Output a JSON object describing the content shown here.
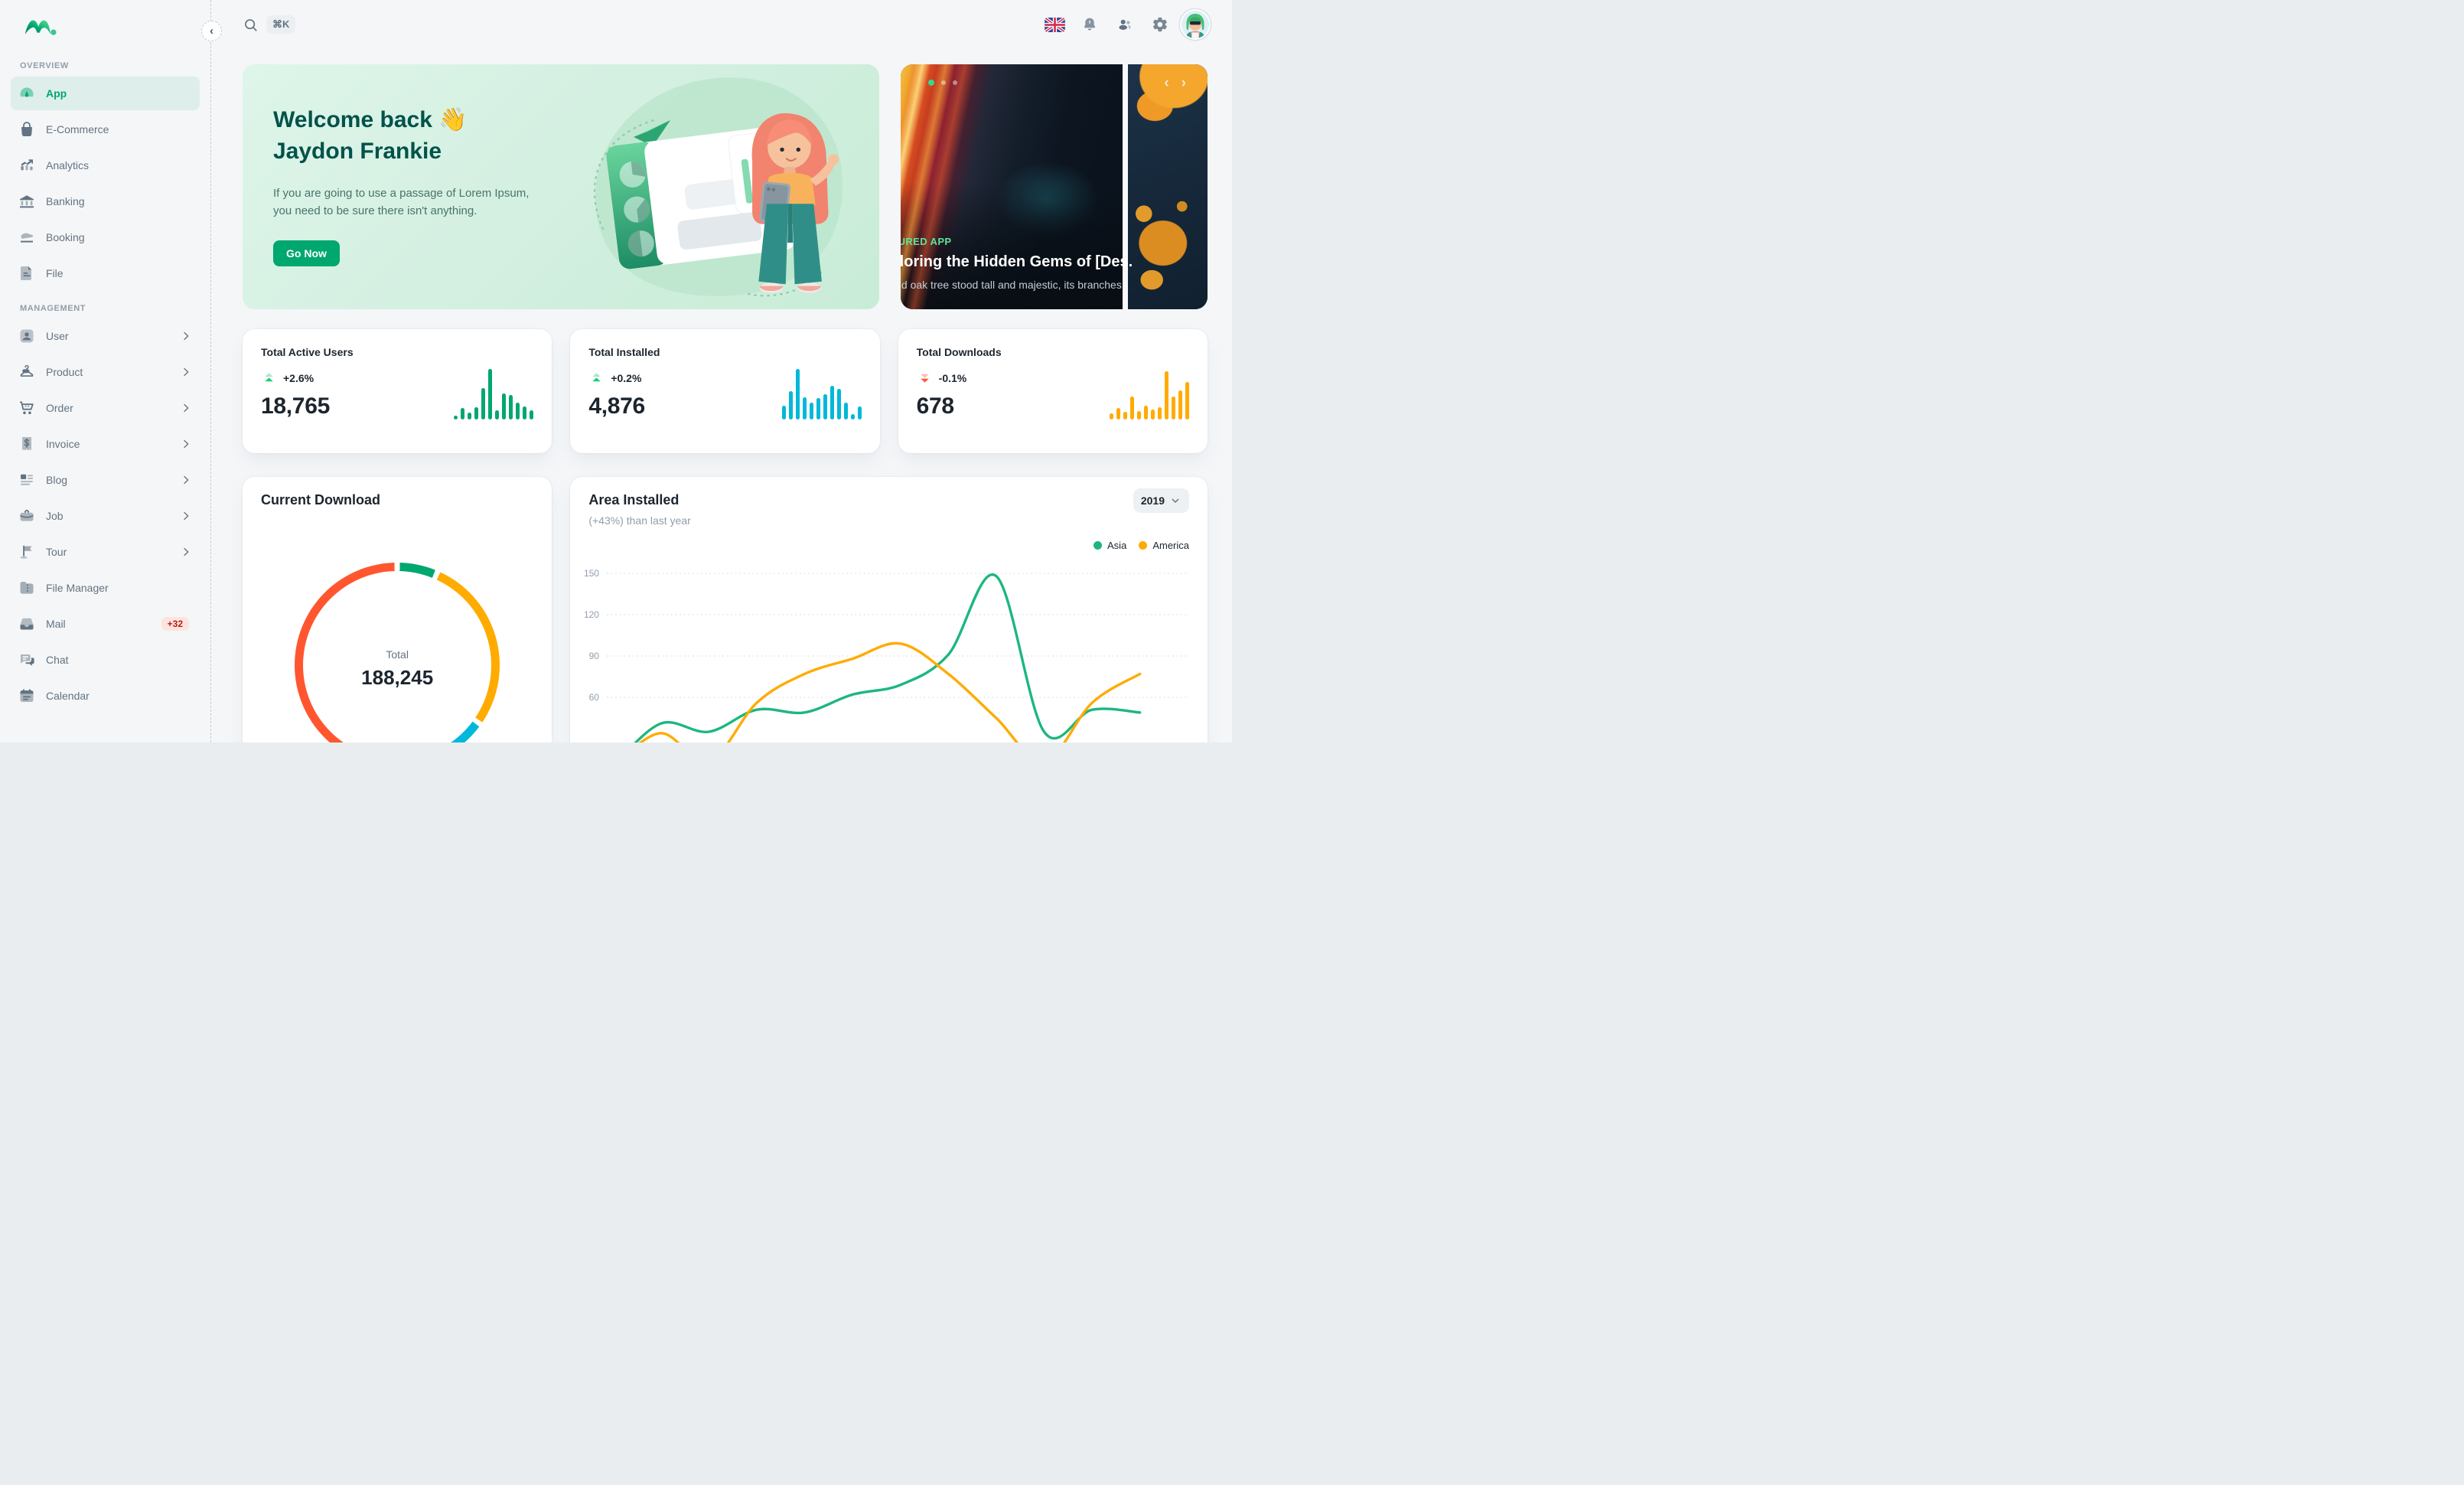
{
  "topbar": {
    "shortcut": "⌘K"
  },
  "sidebar": {
    "sections": [
      {
        "label": "OVERVIEW",
        "items": [
          {
            "label": "App",
            "icon": "gauge-icon",
            "active": true
          },
          {
            "label": "E-Commerce",
            "icon": "shopping-bag-icon"
          },
          {
            "label": "Analytics",
            "icon": "analytics-icon"
          },
          {
            "label": "Banking",
            "icon": "bank-icon"
          },
          {
            "label": "Booking",
            "icon": "booking-icon"
          },
          {
            "label": "File",
            "icon": "file-icon"
          }
        ]
      },
      {
        "label": "MANAGEMENT",
        "items": [
          {
            "label": "User",
            "icon": "user-icon",
            "chevron": true
          },
          {
            "label": "Product",
            "icon": "hanger-icon",
            "chevron": true
          },
          {
            "label": "Order",
            "icon": "cart-icon",
            "chevron": true
          },
          {
            "label": "Invoice",
            "icon": "invoice-icon",
            "chevron": true
          },
          {
            "label": "Blog",
            "icon": "blog-icon",
            "chevron": true
          },
          {
            "label": "Job",
            "icon": "job-icon",
            "chevron": true
          },
          {
            "label": "Tour",
            "icon": "flag-icon",
            "chevron": true
          },
          {
            "label": "File Manager",
            "icon": "folder-icon"
          },
          {
            "label": "Mail",
            "icon": "inbox-icon",
            "badge": "+32"
          },
          {
            "label": "Chat",
            "icon": "chat-icon"
          },
          {
            "label": "Calendar",
            "icon": "calendar-icon"
          }
        ]
      }
    ]
  },
  "banner": {
    "greeting": "Welcome back 👋",
    "name": "Jaydon Frankie",
    "description": "If you are going to use a passage of Lorem Ipsum, you need to be sure there isn't anything.",
    "cta": "Go Now"
  },
  "featured": {
    "label": "FEATURED APP",
    "title": "Exploring the Hidden Gems of [Des...",
    "description": "The old oak tree stood tall and majestic, its branches ...",
    "dots": [
      "active",
      "inactive",
      "inactive"
    ]
  },
  "stats": [
    {
      "title": "Total Active Users",
      "change": "+2.6%",
      "direction": "up",
      "value": "18,765",
      "bar_color": "#00A76F",
      "bars": [
        8,
        22,
        14,
        24,
        62,
        100,
        18,
        52,
        48,
        34,
        26,
        18
      ]
    },
    {
      "title": "Total Installed",
      "change": "+0.2%",
      "direction": "up",
      "value": "4,876",
      "bar_color": "#00B8D9",
      "bars": [
        28,
        56,
        100,
        44,
        34,
        42,
        50,
        66,
        60,
        34,
        10,
        26
      ]
    },
    {
      "title": "Total Downloads",
      "change": "-0.1%",
      "direction": "down",
      "value": "678",
      "bar_color": "#FFAB00",
      "bars": [
        12,
        22,
        15,
        45,
        16,
        28,
        20,
        24,
        95,
        45,
        58,
        75
      ]
    }
  ],
  "chart_data": [
    {
      "type": "pie",
      "variant": "donut",
      "title": "Current Download",
      "center_label": "Total",
      "center_value": "188,245",
      "segments": [
        {
          "percent": 6.5,
          "color": "#00A76F"
        },
        {
          "percent": 28.3,
          "color": "#FFAB00"
        },
        {
          "percent": 23.6,
          "color": "#00B8D9"
        },
        {
          "percent": 41.6,
          "color": "#FF5630"
        }
      ]
    },
    {
      "type": "line",
      "title": "Area Installed",
      "subtitle": "(+43%) than last year",
      "year": "2019",
      "legend_position": "top-right",
      "grid": "dashed-horizontal",
      "y_ticks": [
        150,
        120,
        90,
        60
      ],
      "ylim": [
        30,
        160
      ],
      "x_labels_visible": false,
      "series": [
        {
          "name": "Asia",
          "color": "#1db77e",
          "values": [
            10,
            41,
            35,
            51,
            49,
            62,
            69,
            91,
            148,
            35,
            51,
            49
          ]
        },
        {
          "name": "America",
          "color": "#FFAB00",
          "values": [
            10,
            34,
            13,
            56,
            77,
            88,
            99,
            77,
            45,
            13,
            56,
            77
          ]
        }
      ]
    }
  ],
  "colors": {
    "primary": "#00A76F",
    "info": "#00B8D9",
    "warning": "#FFAB00",
    "error": "#FF5630",
    "text_primary": "#1C252E",
    "text_secondary": "#637381"
  }
}
